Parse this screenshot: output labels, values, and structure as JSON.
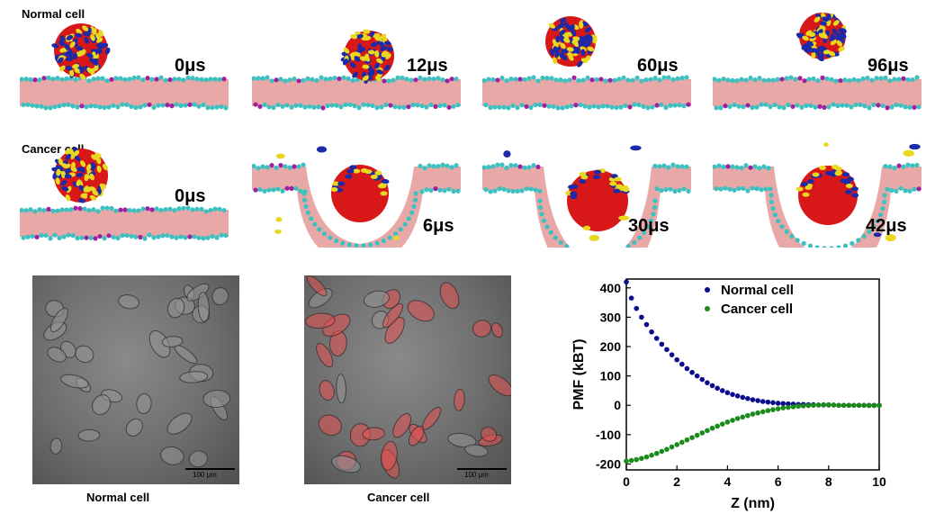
{
  "md": {
    "normal": {
      "row_label": "Normal cell",
      "times": [
        "0μs",
        "12μs",
        "60μs",
        "96μs"
      ]
    },
    "cancer": {
      "row_label": "Cancer cell",
      "times": [
        "0μs",
        "6μs",
        "30μs",
        "42μs"
      ]
    },
    "colors": {
      "lipid_tail": "#e8a8a8",
      "headgroup": "#3cc0c0",
      "headgroup_charged": "#a020a0",
      "np_blue": "#1a2aa8",
      "np_yellow": "#e8d820",
      "np_red": "#d81818"
    }
  },
  "micrographs": [
    {
      "caption": "Normal cell",
      "scale_label": "100 μm",
      "red_staining": "weak"
    },
    {
      "caption": "Cancer cell",
      "scale_label": "100 μm",
      "red_staining": "strong"
    }
  ],
  "chart_data": {
    "type": "scatter",
    "xlabel": "Z (nm)",
    "ylabel": "PMF (kBT)",
    "xlim": [
      0,
      10
    ],
    "ylim": [
      -220,
      430
    ],
    "xticks": [
      0,
      2,
      4,
      6,
      8,
      10
    ],
    "yticks": [
      -200,
      -100,
      0,
      100,
      200,
      300,
      400
    ],
    "legend_position": "top-right",
    "series": [
      {
        "name": "Normal cell",
        "color": "#0a0a8c",
        "x": [
          0.0,
          0.2,
          0.4,
          0.6,
          0.8,
          1.0,
          1.2,
          1.4,
          1.6,
          1.8,
          2.0,
          2.2,
          2.4,
          2.6,
          2.8,
          3.0,
          3.2,
          3.4,
          3.6,
          3.8,
          4.0,
          4.2,
          4.4,
          4.6,
          4.8,
          5.0,
          5.2,
          5.4,
          5.6,
          5.8,
          6.0,
          6.2,
          6.4,
          6.6,
          6.8,
          7.0,
          7.2,
          7.4,
          7.6,
          7.8,
          8.0,
          8.2,
          8.4,
          8.6,
          8.8,
          9.0,
          9.2,
          9.4,
          9.6,
          9.8,
          10.0
        ],
        "y": [
          420,
          365,
          330,
          300,
          275,
          250,
          228,
          208,
          190,
          172,
          155,
          140,
          125,
          112,
          100,
          88,
          77,
          67,
          58,
          50,
          43,
          37,
          32,
          27,
          23,
          19,
          16,
          13,
          11,
          9,
          7,
          6,
          5,
          4,
          3,
          3,
          2,
          2,
          1,
          1,
          1,
          1,
          0,
          0,
          0,
          0,
          0,
          0,
          0,
          0,
          0
        ]
      },
      {
        "name": "Cancer cell",
        "color": "#1a8a1a",
        "x": [
          0.0,
          0.2,
          0.4,
          0.6,
          0.8,
          1.0,
          1.2,
          1.4,
          1.6,
          1.8,
          2.0,
          2.2,
          2.4,
          2.6,
          2.8,
          3.0,
          3.2,
          3.4,
          3.6,
          3.8,
          4.0,
          4.2,
          4.4,
          4.6,
          4.8,
          5.0,
          5.2,
          5.4,
          5.6,
          5.8,
          6.0,
          6.2,
          6.4,
          6.6,
          6.8,
          7.0,
          7.2,
          7.4,
          7.6,
          7.8,
          8.0,
          8.2,
          8.4,
          8.6,
          8.8,
          9.0,
          9.2,
          9.4,
          9.6,
          9.8,
          10.0
        ],
        "y": [
          -190,
          -188,
          -185,
          -181,
          -176,
          -170,
          -164,
          -157,
          -150,
          -142,
          -134,
          -126,
          -118,
          -110,
          -102,
          -94,
          -86,
          -78,
          -71,
          -64,
          -57,
          -51,
          -45,
          -40,
          -35,
          -30,
          -26,
          -22,
          -18,
          -15,
          -12,
          -9,
          -7,
          -5,
          -3,
          -2,
          -1,
          0,
          1,
          2,
          2,
          1,
          0,
          0,
          0,
          0,
          0,
          0,
          -1,
          -1,
          -1
        ]
      }
    ]
  }
}
